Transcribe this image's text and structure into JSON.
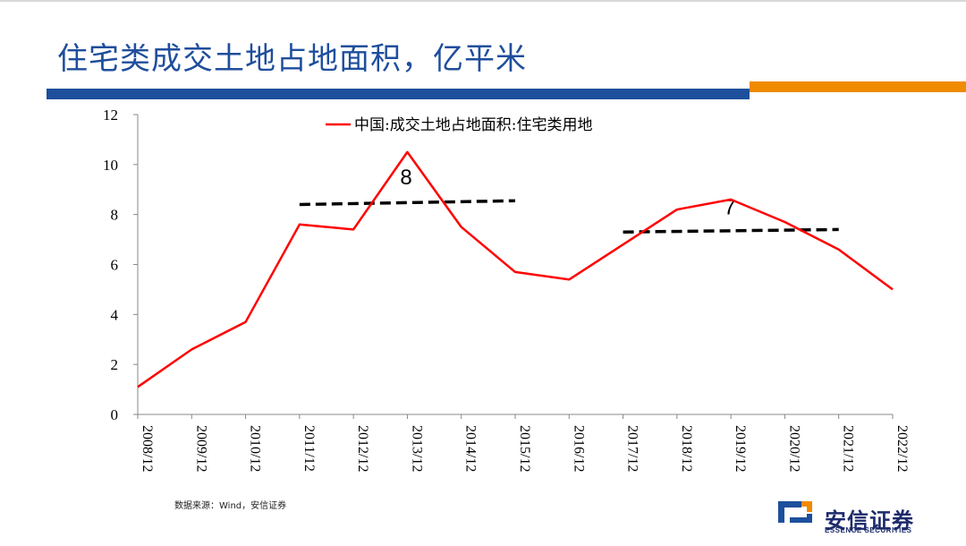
{
  "page": {
    "title": "住宅类成交土地占地面积，亿平米",
    "source": "数据来源：Wind，安信证券"
  },
  "brand": {
    "name_cn": "安信证券",
    "name_en": "ESSENCE SECURITIES",
    "blue": "#1d4f9c",
    "orange": "#f08a00",
    "logo_icon": "essence-logo-icon"
  },
  "chart_data": {
    "type": "line",
    "x": [
      "2008/12",
      "2009/12",
      "2010/12",
      "2011/12",
      "2012/12",
      "2013/12",
      "2014/12",
      "2015/12",
      "2016/12",
      "2017/12",
      "2018/12",
      "2019/12",
      "2020/12",
      "2021/12",
      "2022/12"
    ],
    "series": [
      {
        "name": "中国:成交土地占地面积:住宅类用地",
        "color": "#ff0000",
        "values": [
          1.1,
          2.6,
          3.7,
          7.6,
          7.4,
          10.5,
          7.5,
          5.7,
          5.4,
          6.8,
          8.2,
          8.6,
          7.7,
          6.6,
          5.0
        ]
      }
    ],
    "ylim": [
      0,
      12
    ],
    "yticks": [
      0,
      2,
      4,
      6,
      8,
      10,
      12
    ],
    "legend_position": "top",
    "grid": false,
    "annotations": [
      {
        "type": "dashed-line",
        "from": [
          "2011/12",
          8.4
        ],
        "to": [
          "2015/12",
          8.55
        ],
        "color": "#000000",
        "label": "8",
        "label_at": [
          "2013/12",
          9.2
        ]
      },
      {
        "type": "dashed-line",
        "from": [
          "2017/12",
          7.3
        ],
        "to": [
          "2021/12",
          7.4
        ],
        "color": "#000000",
        "label": "7",
        "label_at": [
          "2019/12",
          8.0
        ]
      }
    ]
  }
}
